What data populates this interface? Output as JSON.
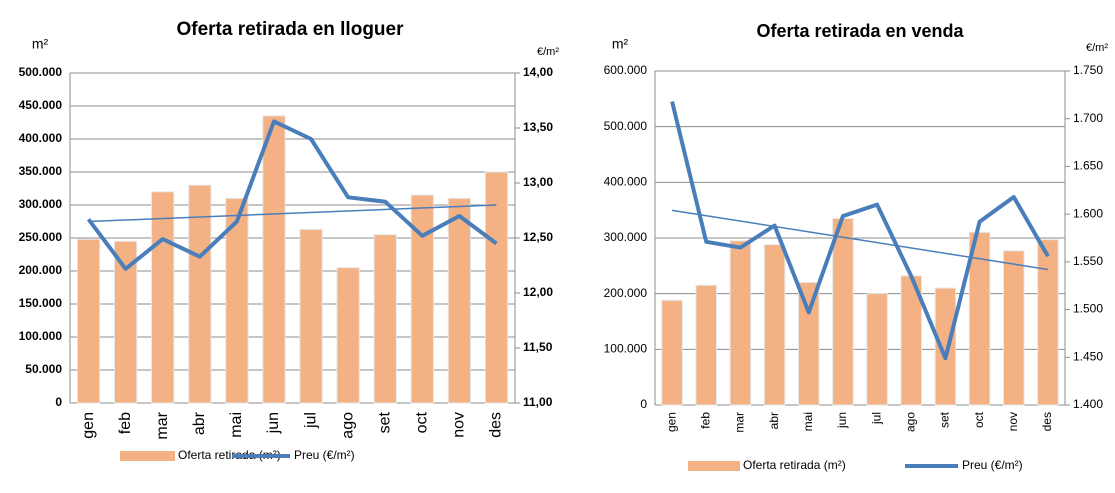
{
  "chart_data": [
    {
      "type": "bar-line",
      "title": "Oferta retirada en lloguer",
      "y_unit": "m²",
      "y2_unit": "€/m²",
      "categories": [
        "gen",
        "feb",
        "mar",
        "abr",
        "mai",
        "jun",
        "jul",
        "ago",
        "set",
        "oct",
        "nov",
        "des"
      ],
      "series": [
        {
          "name": "Oferta retirada (m²)",
          "color": "#f4b183",
          "kind": "bar",
          "values": [
            248000,
            245000,
            320000,
            330000,
            310000,
            435000,
            263000,
            205000,
            255000,
            315000,
            310000,
            350000
          ]
        },
        {
          "name": "Preu (€/m²)",
          "color": "#4a7ebb",
          "kind": "line",
          "axis": "y2",
          "values": [
            12.67,
            12.22,
            12.49,
            12.33,
            12.65,
            13.56,
            13.4,
            12.87,
            12.83,
            12.52,
            12.7,
            12.45
          ]
        }
      ],
      "trend": [
        12.65,
        12.8
      ],
      "ylim": [
        0,
        500000
      ],
      "yticks": [
        0,
        {
          "value": 50000,
          "label": "50.000"
        },
        {
          "value": 100000,
          "label": "100.000"
        },
        {
          "value": 150000,
          "label": "150.000"
        },
        {
          "value": 200000,
          "label": "200.000"
        },
        {
          "value": 250000,
          "label": "250.000"
        },
        {
          "value": 300000,
          "label": "300.000"
        },
        {
          "value": 350000,
          "label": "350.000"
        },
        {
          "value": 400000,
          "label": "400.000"
        },
        {
          "value": 450000,
          "label": "450.000"
        },
        {
          "value": 500000,
          "label": "500.000"
        }
      ],
      "y2lim": [
        11,
        14
      ],
      "y2ticks": [
        {
          "value": 11,
          "label": "11,00"
        },
        {
          "value": 11.5,
          "label": "11,50"
        },
        {
          "value": 12,
          "label": "12,00"
        },
        {
          "value": 12.5,
          "label": "12,50"
        },
        {
          "value": 13,
          "label": "13,00"
        },
        {
          "value": 13.5,
          "label": "13,50"
        },
        {
          "value": 14,
          "label": "14,00"
        }
      ],
      "grid": true
    },
    {
      "type": "bar-line",
      "title": "Oferta retirada en venda",
      "y_unit": "m²",
      "y2_unit": "€/m²",
      "categories": [
        "gen",
        "feb",
        "mar",
        "abr",
        "mai",
        "jun",
        "jul",
        "ago",
        "set",
        "oct",
        "nov",
        "des"
      ],
      "series": [
        {
          "name": "Oferta retirada (m²)",
          "color": "#f4b183",
          "kind": "bar",
          "values": [
            188000,
            215000,
            295000,
            288000,
            220000,
            335000,
            200000,
            232000,
            210000,
            310000,
            277000,
            297000
          ]
        },
        {
          "name": "Preu (€/m²)",
          "color": "#4a7ebb",
          "kind": "line",
          "axis": "y2",
          "values": [
            1.718,
            1.571,
            1.565,
            1.588,
            1.497,
            1.598,
            1.61,
            1.535,
            1.449,
            1.592,
            1.618,
            1.556
          ]
        }
      ],
      "trend": [
        1.604,
        1.542
      ],
      "ylim": [
        0,
        600000
      ],
      "yticks": [
        0,
        {
          "value": 100000,
          "label": "100.000"
        },
        {
          "value": 200000,
          "label": "200.000"
        },
        {
          "value": 300000,
          "label": "300.000"
        },
        {
          "value": 400000,
          "label": "400.000"
        },
        {
          "value": 500000,
          "label": "500.000"
        },
        {
          "value": 600000,
          "label": "600.000"
        }
      ],
      "y2lim": [
        1.4,
        1.75
      ],
      "y2ticks": [
        {
          "value": 1.4,
          "label": "1.400"
        },
        {
          "value": 1.45,
          "label": "1.450"
        },
        {
          "value": 1.5,
          "label": "1.500"
        },
        {
          "value": 1.55,
          "label": "1.550"
        },
        {
          "value": 1.6,
          "label": "1.600"
        },
        {
          "value": 1.65,
          "label": "1.650"
        },
        {
          "value": 1.7,
          "label": "1.700"
        },
        {
          "value": 1.75,
          "label": "1.750"
        }
      ],
      "grid": true
    }
  ]
}
